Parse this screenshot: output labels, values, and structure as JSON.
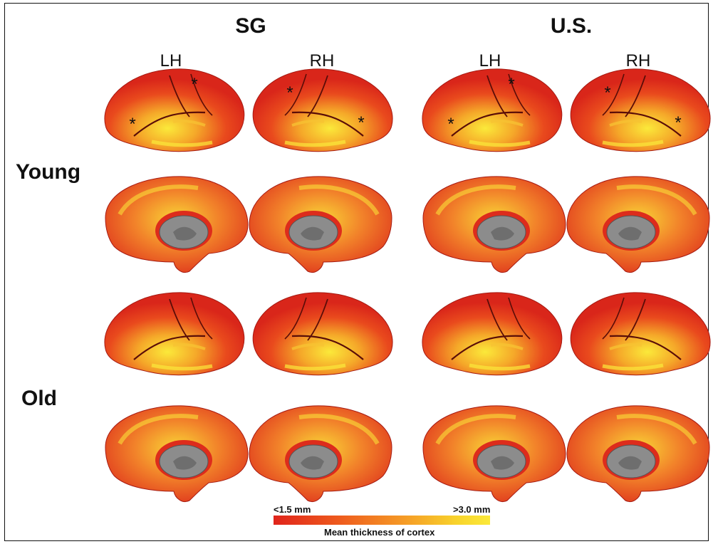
{
  "groups": [
    "SG",
    "U.S."
  ],
  "hemispheres": [
    "LH",
    "RH",
    "LH",
    "RH"
  ],
  "rows": [
    "Young",
    "Old"
  ],
  "legend": {
    "min_label": "<1.5 mm",
    "max_label": ">3.0 mm",
    "caption": "Mean thickness of cortex"
  },
  "marker": "*",
  "colors": {
    "thin": "#e0241b",
    "mid": "#f39a26",
    "thick": "#fbe93a",
    "subcortical": "#8c8c8c"
  }
}
